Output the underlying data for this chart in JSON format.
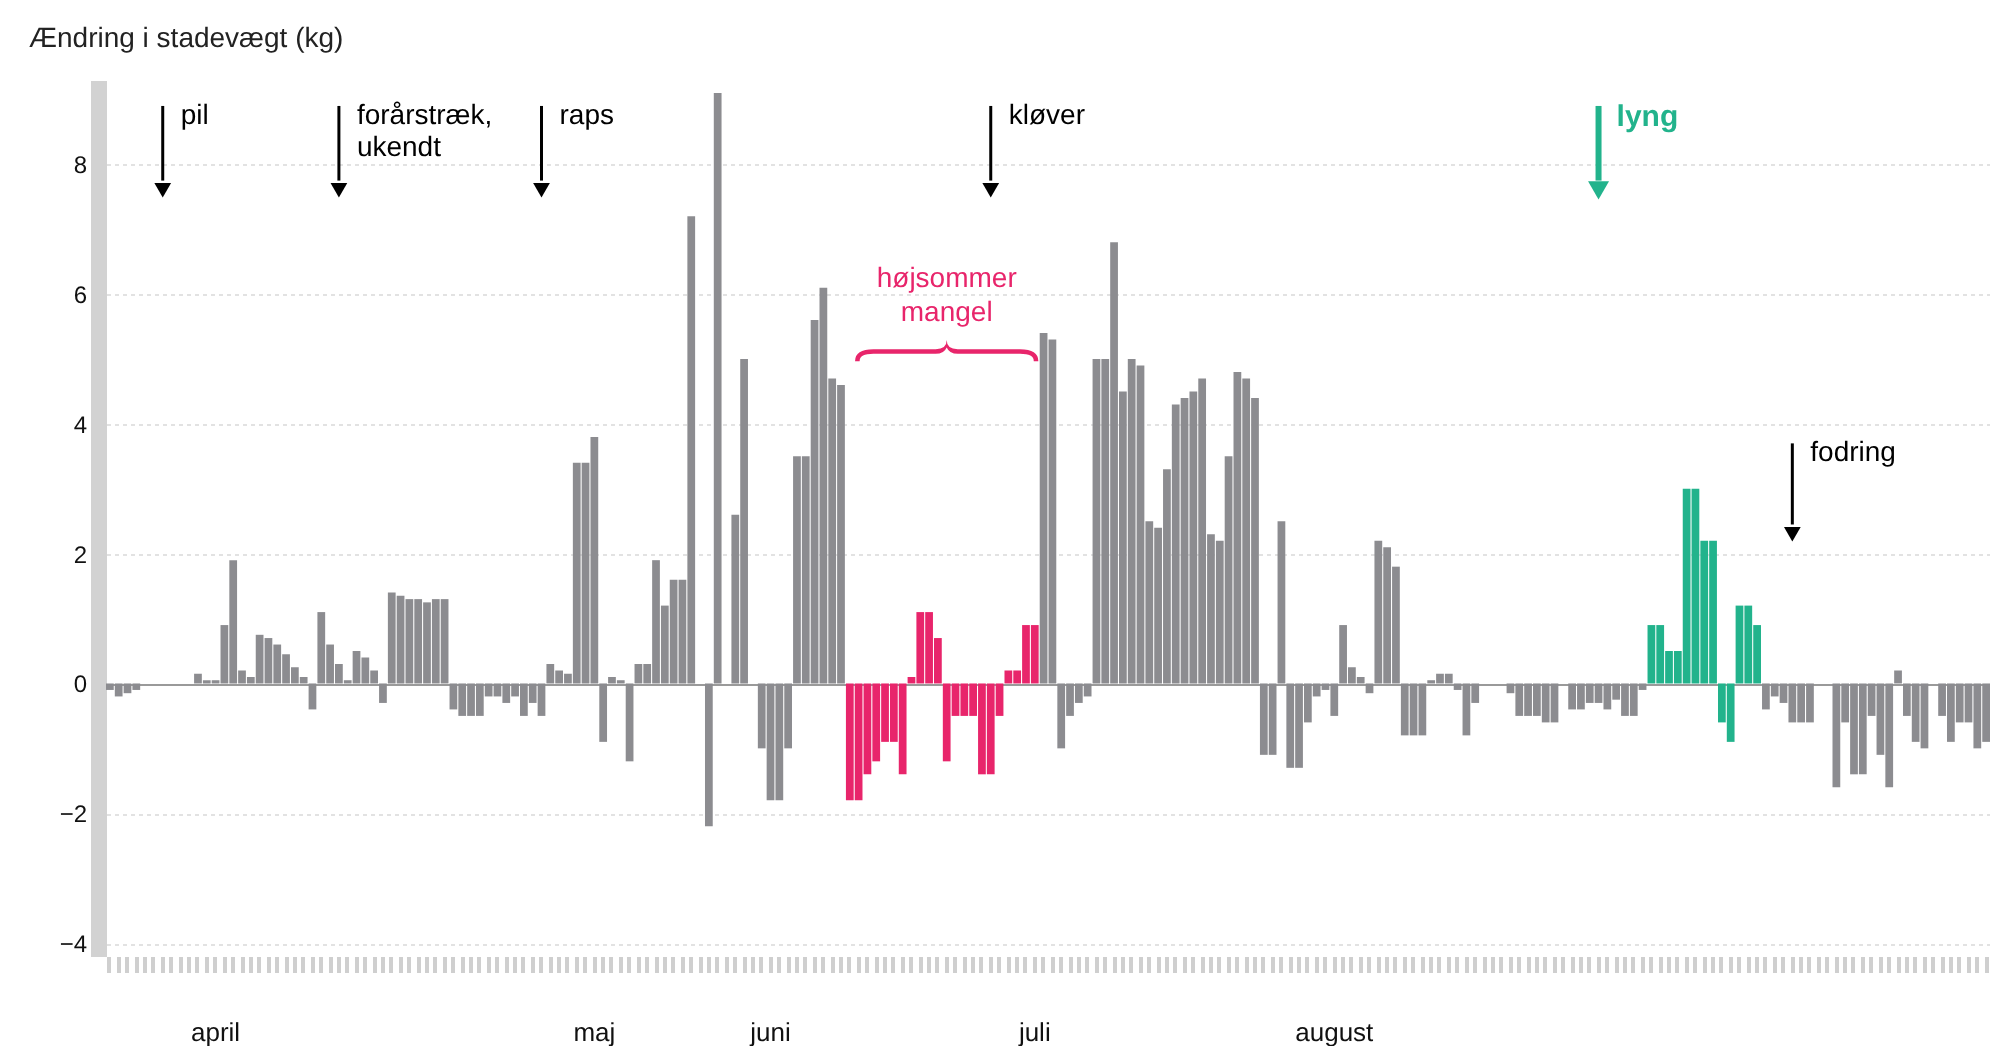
{
  "chart_data": {
    "type": "bar",
    "ylabel": "Ændring i stadevægt (kg)",
    "categories": [
      null,
      null,
      null,
      null,
      null,
      null,
      null,
      null,
      null,
      null,
      null,
      null,
      "april",
      null,
      null,
      null,
      null,
      null,
      null,
      null,
      null,
      null,
      null,
      null,
      null,
      null,
      null,
      null,
      null,
      null,
      null,
      null,
      null,
      null,
      null,
      null,
      null,
      null,
      null,
      null,
      null,
      null,
      null,
      null,
      null,
      null,
      null,
      null,
      null,
      null,
      null,
      null,
      null,
      null,
      null,
      "maj",
      null,
      null,
      null,
      null,
      null,
      null,
      null,
      null,
      null,
      null,
      null,
      null,
      null,
      null,
      null,
      null,
      null,
      null,
      null,
      "juni",
      null,
      null,
      null,
      null,
      null,
      null,
      null,
      null,
      null,
      null,
      null,
      null,
      null,
      null,
      null,
      null,
      null,
      null,
      null,
      null,
      null,
      null,
      null,
      null,
      null,
      null,
      null,
      null,
      null,
      "juli",
      null,
      null,
      null,
      null,
      null,
      null,
      null,
      null,
      null,
      null,
      null,
      null,
      null,
      null,
      null,
      null,
      null,
      null,
      null,
      null,
      null,
      null,
      null,
      null,
      null,
      null,
      null,
      null,
      null,
      null,
      null,
      null,
      null,
      "august",
      null,
      null,
      null,
      null,
      null,
      null,
      null,
      null,
      null,
      null,
      null,
      null,
      null,
      null,
      null,
      null,
      null,
      null,
      null,
      null,
      null,
      null,
      null,
      null,
      null,
      null,
      null,
      null,
      null,
      null,
      null,
      null,
      null,
      null,
      null,
      null,
      null,
      null,
      null,
      null,
      null,
      null,
      null,
      null,
      null,
      null,
      null,
      null,
      null,
      null,
      null,
      null,
      null,
      null,
      null,
      null,
      null,
      null,
      null,
      null,
      null,
      null,
      null,
      null,
      null,
      null,
      null,
      null,
      null,
      null,
      null,
      null,
      null,
      null
    ],
    "series": [
      {
        "color": "#8c8c90",
        "values": [
          -0.1,
          -0.2,
          -0.15,
          -0.1,
          null,
          null,
          null,
          null,
          null,
          null,
          0.15,
          0.05,
          0.05,
          0.9,
          1.9,
          0.2,
          0.1,
          0.75,
          0.7,
          0.6,
          0.45,
          0.25,
          0.1,
          -0.4,
          1.1,
          0.6,
          0.3,
          0.05,
          0.5,
          0.4,
          0.2,
          -0.3,
          1.4,
          1.35,
          1.3,
          1.3,
          1.25,
          1.3,
          1.3,
          -0.4,
          -0.5,
          -0.5,
          -0.5,
          -0.2,
          -0.2,
          -0.3,
          -0.2,
          -0.5,
          -0.3,
          -0.5,
          0.3,
          0.2,
          0.15,
          3.4,
          3.4,
          3.8,
          -0.9,
          0.1,
          0.05,
          -1.2,
          0.3,
          0.3,
          1.9,
          1.2,
          1.6,
          1.6,
          7.2,
          null,
          -2.2,
          9.1,
          null,
          2.6,
          5.0,
          null,
          -1.0,
          -1.8,
          -1.8,
          -1.0,
          3.5,
          3.5,
          5.6,
          6.1,
          4.7,
          4.6,
          null,
          null,
          null,
          null,
          null,
          null,
          null,
          null,
          null,
          null,
          null,
          null,
          null,
          null,
          null,
          null,
          null,
          null,
          null,
          null,
          null,
          null,
          5.4,
          5.3,
          -1.0,
          -0.5,
          -0.3,
          -0.2,
          5.0,
          5.0,
          6.8,
          4.5,
          5.0,
          4.9,
          2.5,
          2.4,
          3.3,
          4.3,
          4.4,
          4.5,
          4.7,
          2.3,
          2.2,
          3.5,
          4.8,
          4.7,
          4.4,
          -1.1,
          -1.1,
          2.5,
          -1.3,
          -1.3,
          -0.6,
          -0.2,
          -0.1,
          -0.5,
          0.9,
          0.25,
          0.1,
          -0.15,
          2.2,
          2.1,
          1.8,
          -0.8,
          -0.8,
          -0.8,
          0.05,
          0.15,
          0.15,
          -0.1,
          -0.8,
          -0.3,
          null,
          null,
          null,
          -0.15,
          -0.5,
          -0.5,
          -0.5,
          -0.6,
          -0.6,
          null,
          -0.4,
          -0.4,
          -0.3,
          -0.3,
          -0.4,
          -0.25,
          -0.5,
          -0.5,
          -0.1,
          null,
          null,
          null,
          null,
          null,
          null,
          null,
          null,
          null,
          null,
          null,
          null,
          null,
          -0.4,
          -0.2,
          -0.3,
          -0.6,
          -0.6,
          -0.6,
          null,
          null,
          -1.6,
          -0.6,
          -1.4,
          -1.4,
          -0.5,
          -1.1,
          -1.6,
          0.2,
          -0.5,
          -0.9,
          -1.0,
          null,
          -0.5,
          -0.9,
          -0.6,
          -0.6,
          -1.0,
          -0.9
        ]
      },
      {
        "color": "#e8256b",
        "values": [
          null,
          null,
          null,
          null,
          null,
          null,
          null,
          null,
          null,
          null,
          null,
          null,
          null,
          null,
          null,
          null,
          null,
          null,
          null,
          null,
          null,
          null,
          null,
          null,
          null,
          null,
          null,
          null,
          null,
          null,
          null,
          null,
          null,
          null,
          null,
          null,
          null,
          null,
          null,
          null,
          null,
          null,
          null,
          null,
          null,
          null,
          null,
          null,
          null,
          null,
          null,
          null,
          null,
          null,
          null,
          null,
          null,
          null,
          null,
          null,
          null,
          null,
          null,
          null,
          null,
          null,
          null,
          null,
          null,
          null,
          null,
          null,
          null,
          null,
          null,
          null,
          null,
          null,
          null,
          null,
          null,
          null,
          null,
          null,
          -1.8,
          -1.8,
          -1.4,
          -1.2,
          -0.9,
          -0.9,
          -1.4,
          0.1,
          1.1,
          1.1,
          0.7,
          -1.2,
          -0.5,
          -0.5,
          -0.5,
          -1.4,
          -1.4,
          -0.5,
          0.2,
          0.2,
          0.9,
          0.9,
          null,
          null,
          null,
          null,
          null,
          null,
          null,
          null,
          null,
          null,
          null,
          null,
          null,
          null,
          null,
          null,
          null,
          null,
          null,
          null,
          null,
          null,
          null,
          null,
          null,
          null,
          null,
          null,
          null,
          null,
          null,
          null,
          null,
          null,
          null,
          null,
          null,
          null,
          null,
          null,
          null,
          null,
          null,
          null,
          null,
          null,
          null,
          null,
          null,
          null,
          null,
          null,
          null,
          null,
          null,
          null,
          null,
          null,
          null,
          null,
          null,
          null,
          null,
          null,
          null,
          null,
          null,
          null,
          null,
          null,
          null,
          null,
          null,
          null,
          null,
          null,
          null,
          null,
          null,
          null,
          null,
          null,
          null,
          null,
          null,
          null,
          null,
          null,
          null,
          null,
          null,
          null,
          null,
          null,
          null,
          null,
          null,
          null,
          null,
          null,
          null,
          null,
          null,
          null,
          null,
          null,
          null,
          null
        ]
      },
      {
        "color": "#22b38c",
        "values": [
          null,
          null,
          null,
          null,
          null,
          null,
          null,
          null,
          null,
          null,
          null,
          null,
          null,
          null,
          null,
          null,
          null,
          null,
          null,
          null,
          null,
          null,
          null,
          null,
          null,
          null,
          null,
          null,
          null,
          null,
          null,
          null,
          null,
          null,
          null,
          null,
          null,
          null,
          null,
          null,
          null,
          null,
          null,
          null,
          null,
          null,
          null,
          null,
          null,
          null,
          null,
          null,
          null,
          null,
          null,
          null,
          null,
          null,
          null,
          null,
          null,
          null,
          null,
          null,
          null,
          null,
          null,
          null,
          null,
          null,
          null,
          null,
          null,
          null,
          null,
          null,
          null,
          null,
          null,
          null,
          null,
          null,
          null,
          null,
          null,
          null,
          null,
          null,
          null,
          null,
          null,
          null,
          null,
          null,
          null,
          null,
          null,
          null,
          null,
          null,
          null,
          null,
          null,
          null,
          null,
          null,
          null,
          null,
          null,
          null,
          null,
          null,
          null,
          null,
          null,
          null,
          null,
          null,
          null,
          null,
          null,
          null,
          null,
          null,
          null,
          null,
          null,
          null,
          null,
          null,
          null,
          null,
          null,
          null,
          null,
          null,
          null,
          null,
          null,
          null,
          null,
          null,
          null,
          null,
          null,
          null,
          null,
          null,
          null,
          null,
          null,
          null,
          null,
          null,
          null,
          null,
          null,
          null,
          null,
          null,
          null,
          null,
          null,
          null,
          null,
          null,
          null,
          null,
          null,
          null,
          null,
          null,
          null,
          null,
          null,
          0.9,
          0.9,
          0.5,
          0.5,
          3.0,
          3.0,
          2.2,
          2.2,
          -0.6,
          -0.9,
          1.2,
          1.2,
          0.9,
          null,
          null,
          null,
          null,
          null,
          null,
          null,
          null,
          null,
          null,
          null,
          null,
          null,
          null,
          null,
          null,
          null,
          null,
          null,
          null,
          null,
          null,
          null,
          null,
          null,
          null
        ]
      }
    ],
    "ylim": [
      -4.2,
      9.3
    ],
    "yticks": [
      -4,
      -2,
      0,
      2,
      4,
      6,
      8
    ],
    "grid": "y",
    "annotations": [
      "pil",
      "forårstræk,\nukendt",
      "raps",
      "højsommer\nmangel",
      "kløver",
      "lyng",
      "fodring"
    ]
  }
}
